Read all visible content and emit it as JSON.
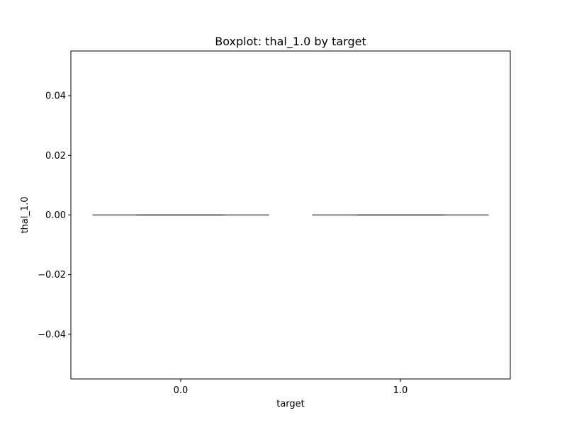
{
  "chart_data": {
    "type": "box",
    "title": "Boxplot: thal_1.0 by target",
    "xlabel": "target",
    "ylabel": "thal_1.0",
    "categories": [
      "0.0",
      "1.0"
    ],
    "boxes": [
      {
        "category": "0.0",
        "whisker_low": 0.0,
        "q1": 0.0,
        "median": 0.0,
        "q3": 0.0,
        "whisker_high": 0.0
      },
      {
        "category": "1.0",
        "whisker_low": 0.0,
        "q1": 0.0,
        "median": 0.0,
        "q3": 0.0,
        "whisker_high": 0.0
      }
    ],
    "ylim": [
      -0.055,
      0.055
    ],
    "yticks": [
      -0.04,
      -0.02,
      0.0,
      0.02,
      0.04
    ],
    "ytick_labels": [
      "−0.04",
      "−0.02",
      "0.00",
      "0.02",
      "0.04"
    ],
    "grid": false,
    "colors": {
      "box_edge": "#3f3f3f",
      "axes": "#000000"
    }
  }
}
